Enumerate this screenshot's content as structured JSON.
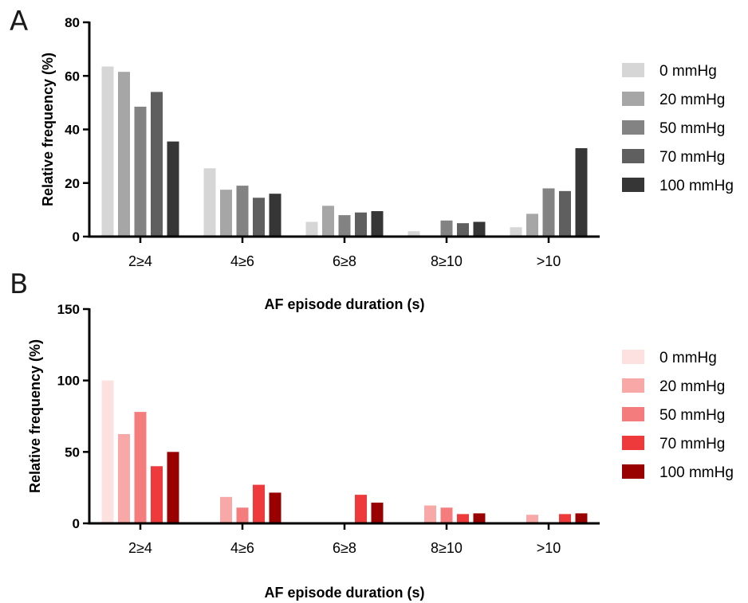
{
  "chart_data": [
    {
      "panel_label": "A",
      "type": "bar",
      "xlabel": "AF episode duration (s)",
      "ylabel": "Relative frequency (%)",
      "categories": [
        "2≥4",
        "4≥6",
        "6≥8",
        "8≥10",
        ">10"
      ],
      "ylim": [
        0,
        80
      ],
      "yticks": [
        "0",
        "20",
        "40",
        "60",
        "80"
      ],
      "legend_position": "right",
      "series": [
        {
          "name": "0 mmHg",
          "color": "#d6d6d6",
          "values": [
            63.5,
            25.5,
            5.5,
            2,
            3.5
          ]
        },
        {
          "name": "20 mmHg",
          "color": "#a6a6a6",
          "values": [
            61.5,
            17.5,
            11.5,
            0,
            8.5
          ]
        },
        {
          "name": "50 mmHg",
          "color": "#838383",
          "values": [
            48.5,
            19,
            8,
            6,
            18
          ]
        },
        {
          "name": "70 mmHg",
          "color": "#5f5f5f",
          "values": [
            54,
            14.5,
            9,
            5,
            17
          ]
        },
        {
          "name": "100 mmHg",
          "color": "#363636",
          "values": [
            35.5,
            16,
            9.5,
            5.5,
            33
          ]
        }
      ]
    },
    {
      "panel_label": "B",
      "type": "bar",
      "xlabel": "AF episode duration (s)",
      "ylabel": "Relative frequency (%)",
      "categories": [
        "2≥4",
        "4≥6",
        "6≥8",
        "8≥10",
        ">10"
      ],
      "ylim": [
        0,
        150
      ],
      "yticks": [
        "0",
        "50",
        "100",
        "150"
      ],
      "legend_position": "right",
      "series": [
        {
          "name": "0 mmHg",
          "color": "#fde0e0",
          "values": [
            100,
            0,
            0,
            0,
            0
          ]
        },
        {
          "name": "20 mmHg",
          "color": "#f9a8a8",
          "values": [
            62.5,
            18.5,
            0,
            12.5,
            6
          ]
        },
        {
          "name": "50 mmHg",
          "color": "#f47c7c",
          "values": [
            78,
            11,
            0,
            11,
            0
          ]
        },
        {
          "name": "70 mmHg",
          "color": "#ee3a3a",
          "values": [
            40,
            27,
            20,
            6.5,
            6.5
          ]
        },
        {
          "name": "100 mmHg",
          "color": "#990000",
          "values": [
            50,
            21.5,
            14.5,
            7,
            7
          ]
        }
      ]
    }
  ]
}
